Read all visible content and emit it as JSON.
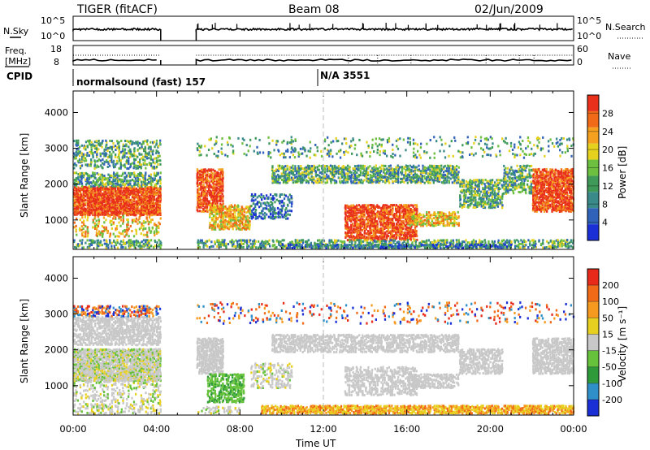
{
  "header": {
    "radar": "TIGER (fitACF)",
    "beam": "Beam 08",
    "date": "02/Jun/2009"
  },
  "panels": {
    "nsky_label": "N.Sky",
    "nsky_ticks": [
      "10^5",
      "10^0"
    ],
    "nsearch_label": "N.Search",
    "nsearch_ticks": [
      "10^5",
      "10^0"
    ],
    "freq_label": "Freq.",
    "freq_unit": "[MHz]",
    "freq_ticks": [
      "18",
      "8"
    ],
    "nave_label": "Nave",
    "nave_ticks": [
      "60",
      "0"
    ],
    "cpid_label": "CPID",
    "cpid_segments": [
      "normalsound (fast) 157",
      "N/A 3551"
    ]
  },
  "chart_data": [
    {
      "type": "heatmap",
      "ylabel": "Slant Range [km]",
      "xlabel": "Time UT",
      "x_ticks": [
        "00:00",
        "04:00",
        "08:00",
        "12:00",
        "16:00",
        "20:00",
        "00:00"
      ],
      "x_range_hours": [
        0,
        24
      ],
      "y_ticks": [
        1000,
        2000,
        3000,
        4000
      ],
      "ylim": [
        180,
        4600
      ],
      "data_gap_hours": [
        4.2,
        5.9
      ],
      "colorbar": {
        "label": "Power [dB]",
        "ticks": [
          4,
          8,
          12,
          16,
          20,
          24,
          28
        ],
        "range": [
          0,
          32
        ],
        "colors": [
          "#1a2fd6",
          "#2f62b8",
          "#3a8a8a",
          "#3f9a5a",
          "#6cbf3f",
          "#e6d21e",
          "#f5a01e",
          "#f06a17",
          "#e8301a"
        ]
      }
    },
    {
      "type": "heatmap",
      "ylabel": "Slant Range [km]",
      "xlabel": "Time UT",
      "x_ticks": [
        "00:00",
        "04:00",
        "08:00",
        "12:00",
        "16:00",
        "20:00",
        "00:00"
      ],
      "x_range_hours": [
        0,
        24
      ],
      "y_ticks": [
        1000,
        2000,
        3000,
        4000
      ],
      "ylim": [
        180,
        4600
      ],
      "data_gap_hours": [
        4.2,
        5.9
      ],
      "colorbar": {
        "label": "Velocity [m s⁻¹]",
        "ticks": [
          200,
          100,
          50,
          15,
          -15,
          -50,
          -100,
          -200
        ],
        "colors": [
          "#1a2fd6",
          "#2f8fc8",
          "#2f9a3a",
          "#66c23a",
          "#c8c8c8",
          "#e8d020",
          "#f59a1e",
          "#f06a17",
          "#e82a1a"
        ]
      }
    }
  ],
  "colors": {
    "ground_scatter": "#c8c8c8",
    "axis": "#000000"
  }
}
